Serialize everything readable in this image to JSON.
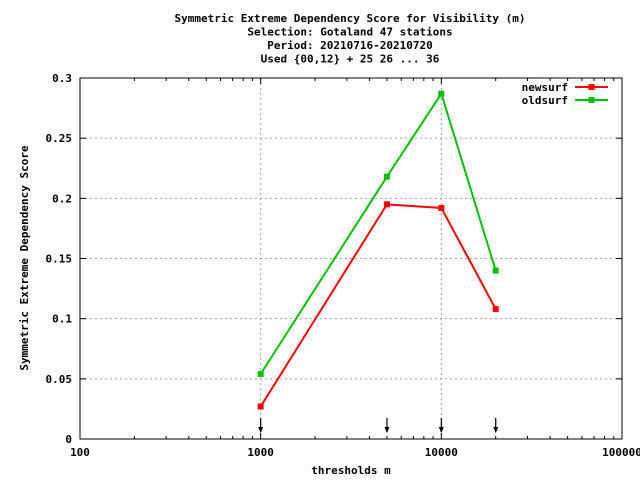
{
  "chart_data": {
    "type": "line",
    "title_lines": [
      "Symmetric Extreme Dependency Score  for Visibility (m)",
      "Selection: Gotaland     47 stations",
      "Period: 20210716-20210720",
      "Used {00,12} + 25 26 ... 36"
    ],
    "xlabel": "thresholds m",
    "ylabel": "Symmetric Extreme Dependency Score",
    "x_scale": "log",
    "xlim": [
      100,
      100000
    ],
    "ylim": [
      0,
      0.3
    ],
    "x_ticks": [
      100,
      1000,
      10000,
      100000
    ],
    "x_tick_labels": [
      "100",
      "1000",
      "10000",
      "100000"
    ],
    "y_ticks": [
      0,
      0.05,
      0.1,
      0.15,
      0.2,
      0.25,
      0.3
    ],
    "y_tick_labels": [
      "0",
      "0.05",
      "0.1",
      "0.15",
      "0.2",
      "0.25",
      "0.3"
    ],
    "grid": true,
    "legend_position": "top-right",
    "threshold_markers": [
      1000,
      5000,
      10000,
      20000
    ],
    "series": [
      {
        "name": "newsurf",
        "color": "#ff0000",
        "x": [
          1000,
          5000,
          10000,
          20000
        ],
        "y": [
          0.027,
          0.195,
          0.192,
          0.108
        ]
      },
      {
        "name": "oldsurf",
        "color": "#00c000",
        "x": [
          1000,
          5000,
          10000,
          20000
        ],
        "y": [
          0.054,
          0.218,
          0.287,
          0.14
        ]
      }
    ]
  }
}
